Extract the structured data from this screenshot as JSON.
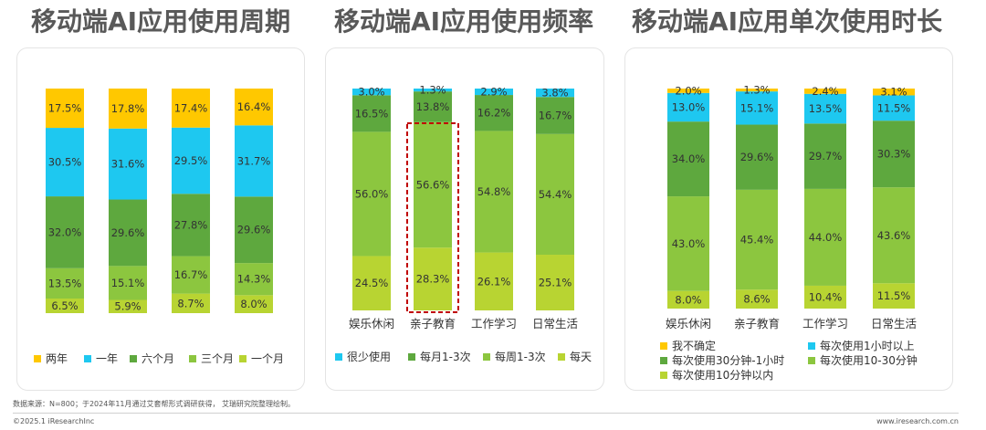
{
  "colors": {
    "yellow": "#FFC800",
    "cyan": "#1EC8F0",
    "dark_green": "#5EA83E",
    "mid_green": "#8CC63F",
    "light_green": "#B8D432",
    "highlight": "#C00000"
  },
  "chart_data": [
    {
      "type": "bar",
      "stacked": true,
      "title": "移动端AI应用使用周期",
      "categories": [
        "娱乐休闲",
        "亲子教育",
        "工作学习",
        "日常生活"
      ],
      "series": [
        {
          "name": "一个月",
          "color": "#B8D432",
          "values": [
            6.5,
            5.9,
            8.7,
            8.0
          ]
        },
        {
          "name": "三个月",
          "color": "#8CC63F",
          "values": [
            13.5,
            15.1,
            16.7,
            14.3
          ]
        },
        {
          "name": "六个月",
          "color": "#5EA83E",
          "values": [
            32.0,
            29.6,
            27.8,
            29.6
          ]
        },
        {
          "name": "一年",
          "color": "#1EC8F0",
          "values": [
            30.5,
            31.6,
            29.5,
            31.7
          ]
        },
        {
          "name": "两年",
          "color": "#FFC800",
          "values": [
            17.5,
            17.8,
            17.4,
            16.4
          ]
        }
      ],
      "legend_order": [
        "两年",
        "一年",
        "六个月",
        "三个月",
        "一个月"
      ],
      "show_category_labels": false
    },
    {
      "type": "bar",
      "stacked": true,
      "title": "移动端AI应用使用频率",
      "categories": [
        "娱乐休闲",
        "亲子教育",
        "工作学习",
        "日常生活"
      ],
      "series": [
        {
          "name": "每天",
          "color": "#B8D432",
          "values": [
            24.5,
            28.3,
            26.1,
            25.1
          ]
        },
        {
          "name": "每周1-3次",
          "color": "#8CC63F",
          "values": [
            56.0,
            56.6,
            54.8,
            54.4
          ]
        },
        {
          "name": "每月1-3次",
          "color": "#5EA83E",
          "values": [
            16.5,
            13.8,
            16.2,
            16.7
          ]
        },
        {
          "name": "很少使用",
          "color": "#1EC8F0",
          "values": [
            3.0,
            1.3,
            2.9,
            3.8
          ]
        }
      ],
      "legend_order": [
        "很少使用",
        "每月1-3次",
        "每周1-3次",
        "每天"
      ],
      "highlight_category": "亲子教育",
      "show_category_labels": true
    },
    {
      "type": "bar",
      "stacked": true,
      "title": "移动端AI应用单次使用时长",
      "categories": [
        "娱乐休闲",
        "亲子教育",
        "工作学习",
        "日常生活"
      ],
      "series": [
        {
          "name": "每次使用10分钟以内",
          "color": "#B8D432",
          "values": [
            8.0,
            8.6,
            10.4,
            11.5
          ]
        },
        {
          "name": "每次使用10-30分钟",
          "color": "#8CC63F",
          "values": [
            43.0,
            45.4,
            44.0,
            43.6
          ]
        },
        {
          "name": "每次使用30分钟-1小时",
          "color": "#5EA83E",
          "values": [
            34.0,
            29.6,
            29.7,
            30.3
          ]
        },
        {
          "name": "每次使用1小时以上",
          "color": "#1EC8F0",
          "values": [
            13.0,
            15.1,
            13.5,
            11.5
          ]
        },
        {
          "name": "我不确定",
          "color": "#FFC800",
          "values": [
            2.0,
            1.3,
            2.4,
            3.1
          ]
        }
      ],
      "legend_order": [
        "我不确定",
        "每次使用1小时以上",
        "每次使用30分钟-1小时",
        "每次使用10-30分钟",
        "每次使用10分钟以内"
      ],
      "show_category_labels": true
    }
  ],
  "footer": {
    "source": "数据来源：N=800；于2024年11月通过艾套帮形式调研获得， 艾瑞研究院整理绘制。",
    "copyright": "©2025.1 iResearchInc",
    "website": "www.iresearch.com.cn"
  }
}
